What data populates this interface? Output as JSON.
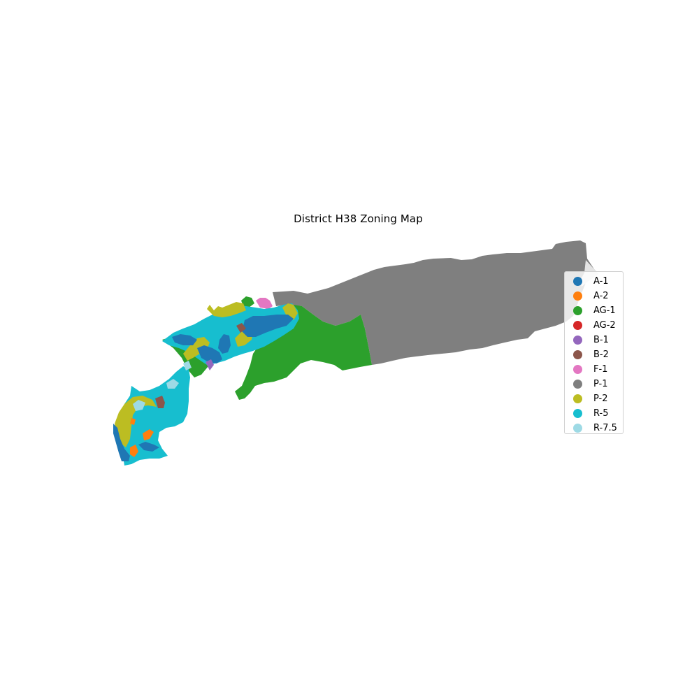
{
  "title": "District H38 Zoning Map",
  "legend": [
    {
      "label": "A-1",
      "color": "#1f77b4"
    },
    {
      "label": "A-2",
      "color": "#ff7f0e"
    },
    {
      "label": "AG-1",
      "color": "#2ca02c"
    },
    {
      "label": "AG-2",
      "color": "#d62728"
    },
    {
      "label": "B-1",
      "color": "#9467bd"
    },
    {
      "label": "B-2",
      "color": "#8c564b"
    },
    {
      "label": "F-1",
      "color": "#e377c2"
    },
    {
      "label": "P-1",
      "color": "#7f7f7f"
    },
    {
      "label": "P-2",
      "color": "#bcbd22"
    },
    {
      "label": "R-5",
      "color": "#17becf"
    },
    {
      "label": "R-7.5",
      "color": "#9edae5"
    }
  ]
}
